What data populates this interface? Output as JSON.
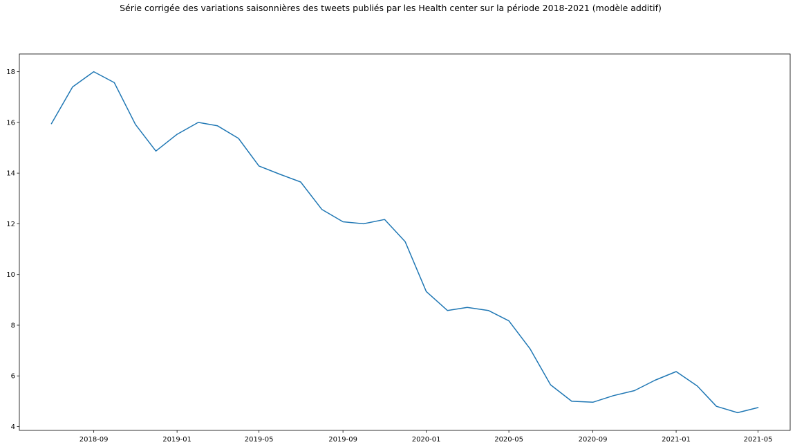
{
  "chart_data": {
    "type": "line",
    "title": "Série corrigée des variations saisonnières des tweets publiés par les Health center sur la période 2018-2021 (modèle additif)",
    "xlabel": "",
    "ylabel": "",
    "x_ticks": [
      "2018-09",
      "2019-01",
      "2019-05",
      "2019-09",
      "2020-01",
      "2020-05",
      "2020-09",
      "2021-01",
      "2021-05"
    ],
    "y_ticks": [
      4,
      6,
      8,
      10,
      12,
      14,
      16,
      18
    ],
    "ylim": [
      3.85,
      18.7
    ],
    "xlim": [
      "2018-05-15",
      "2021-06-17"
    ],
    "grid": false,
    "line_color": "#1f77b4",
    "series": [
      {
        "x": [
          "2018-07",
          "2018-08",
          "2018-09",
          "2018-10",
          "2018-11",
          "2018-12",
          "2019-01",
          "2019-02",
          "2019-03",
          "2019-04",
          "2019-05",
          "2019-06",
          "2019-07",
          "2019-08",
          "2019-09",
          "2019-10",
          "2019-11",
          "2019-12",
          "2020-01",
          "2020-02",
          "2020-03",
          "2020-04",
          "2020-05",
          "2020-06",
          "2020-07",
          "2020-08",
          "2020-09",
          "2020-10",
          "2020-11",
          "2020-12",
          "2021-01",
          "2021-02",
          "2021-03",
          "2021-04",
          "2021-05"
        ],
        "values": [
          15.95,
          17.4,
          18.0,
          17.57,
          15.92,
          14.87,
          15.53,
          16.0,
          15.87,
          15.37,
          14.28,
          13.95,
          13.65,
          12.57,
          12.08,
          12.0,
          12.17,
          11.3,
          9.33,
          8.58,
          8.7,
          8.58,
          8.17,
          7.07,
          5.65,
          5.0,
          4.96,
          5.22,
          5.42,
          5.83,
          6.17,
          5.6,
          4.8,
          4.55,
          4.75
        ]
      }
    ]
  }
}
